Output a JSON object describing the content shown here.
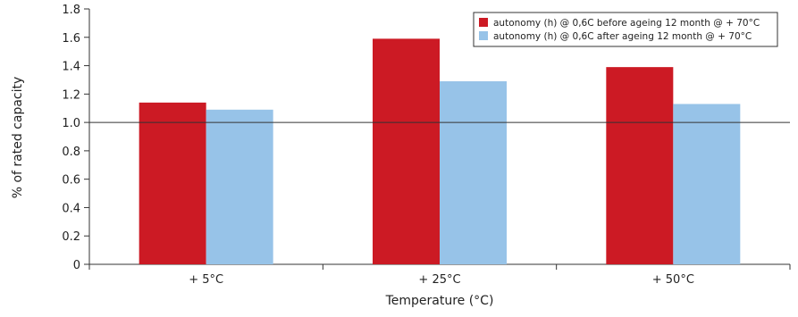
{
  "chart_data": {
    "type": "bar",
    "title": "",
    "xlabel": "Temperature (°C)",
    "ylabel": "% of rated capacity",
    "categories": [
      "+ 5°C",
      "+ 25°C",
      "+ 50°C"
    ],
    "ylim": [
      0,
      1.8
    ],
    "yticks": [
      "0",
      "0.2",
      "0.4",
      "0.6",
      "0.8",
      "1.0",
      "1.2",
      "1.4",
      "1.6",
      "1.8"
    ],
    "reference_line": 1.0,
    "legend_position": "top-right",
    "grid": false,
    "series": [
      {
        "name": "autonomy (h) @ 0,6C before ageing 12 month @ + 70°C",
        "values": [
          1.14,
          1.59,
          1.39
        ],
        "color": "#cc1a24"
      },
      {
        "name": "autonomy (h) @ 0,6C after ageing 12 month @ + 70°C",
        "values": [
          1.09,
          1.29,
          1.13
        ],
        "color": "#97c3e8"
      }
    ]
  }
}
